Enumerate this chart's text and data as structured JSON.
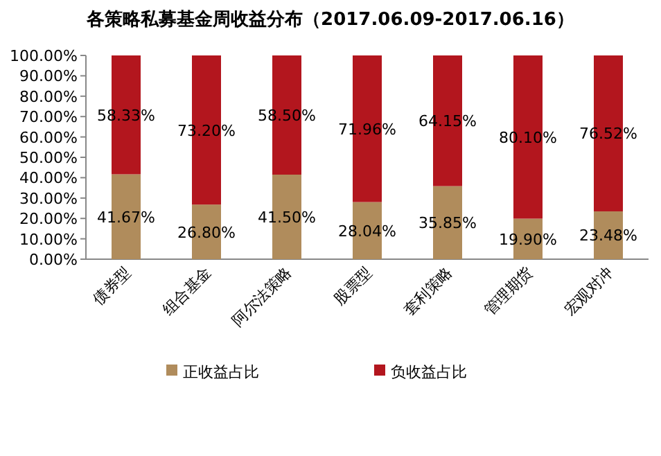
{
  "chart_data": {
    "type": "bar",
    "stacked": true,
    "title": "各策略私募基金周收益分布（2017.06.09-2017.06.16）",
    "categories": [
      "债券型",
      "组合基金",
      "阿尔法策略",
      "股票型",
      "套利策略",
      "管理期货",
      "宏观对冲"
    ],
    "series": [
      {
        "name": "正收益占比",
        "color": "#b08c5c",
        "values": [
          41.67,
          26.8,
          41.5,
          28.04,
          35.85,
          19.9,
          23.48
        ],
        "value_labels": [
          "41.67%",
          "26.80%",
          "41.50%",
          "28.04%",
          "35.85%",
          "19.90%",
          "23.48%"
        ]
      },
      {
        "name": "负收益占比",
        "color": "#b3161e",
        "values": [
          58.33,
          73.2,
          58.5,
          71.96,
          64.15,
          80.1,
          76.52
        ],
        "value_labels": [
          "58.33%",
          "73.20%",
          "58.50%",
          "71.96%",
          "64.15%",
          "80.10%",
          "76.52%"
        ]
      }
    ],
    "ylim": [
      0,
      100
    ],
    "yticks": [
      {
        "value": 0,
        "label": "0.00%"
      },
      {
        "value": 10,
        "label": "10.00%"
      },
      {
        "value": 20,
        "label": "20.00%"
      },
      {
        "value": 30,
        "label": "30.00%"
      },
      {
        "value": 40,
        "label": "40.00%"
      },
      {
        "value": 50,
        "label": "50.00%"
      },
      {
        "value": 60,
        "label": "60.00%"
      },
      {
        "value": 70,
        "label": "70.00%"
      },
      {
        "value": 80,
        "label": "80.00%"
      },
      {
        "value": 90,
        "label": "90.00%"
      },
      {
        "value": 100,
        "label": "100.00%"
      }
    ],
    "legend": "bottom"
  }
}
